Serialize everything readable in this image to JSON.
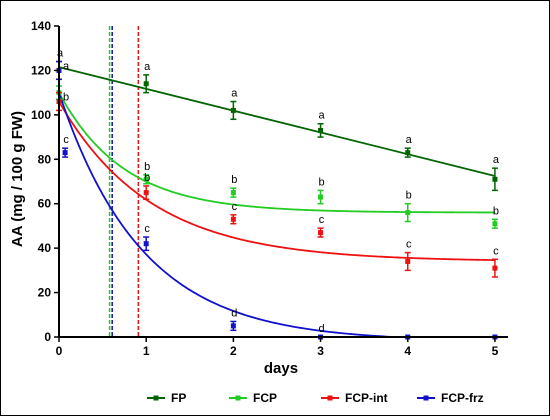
{
  "chart_data": {
    "type": "scatter",
    "title": "",
    "xlabel": "days",
    "ylabel": "AA (mg / 100 g FW)",
    "xlim": [
      0,
      5.15
    ],
    "ylim": [
      0,
      140
    ],
    "xticks": [
      "0",
      "1",
      "2",
      "3",
      "4",
      "5"
    ],
    "yticks": [
      "0",
      "20",
      "40",
      "60",
      "80",
      "100",
      "120",
      "140"
    ],
    "grid": false,
    "legend_position": "bottom",
    "series": [
      {
        "name": "FP",
        "color": "#006400",
        "x": [
          0,
          1,
          2,
          3,
          4,
          5
        ],
        "y": [
          120,
          114,
          102,
          93,
          83,
          71
        ],
        "err": [
          4,
          4,
          4,
          3,
          2,
          5
        ],
        "letters": [
          "a",
          "a",
          "a",
          "a",
          "a",
          "a"
        ],
        "fit": {
          "kind": "linear",
          "start": 121.5,
          "end": 72.5
        }
      },
      {
        "name": "FCP",
        "color": "#22cc22",
        "x": [
          0,
          1,
          2,
          3,
          4,
          5
        ],
        "y": [
          110,
          71,
          65,
          63,
          56,
          51
        ],
        "err": [
          3,
          2,
          2,
          3,
          4,
          2
        ],
        "letters": [
          "",
          "b",
          "b",
          "b",
          "b",
          "b"
        ],
        "fit": {
          "kind": "exp",
          "y0": 110,
          "plateau": 56,
          "k": 1.35
        }
      },
      {
        "name": "FCP-int",
        "color": "#ee1111",
        "x": [
          0,
          1,
          2,
          3,
          4,
          5
        ],
        "y": [
          106,
          65,
          53,
          47,
          34,
          31
        ],
        "err": [
          4,
          3,
          2,
          2,
          4,
          4
        ],
        "letters": [
          "",
          "b",
          "c",
          "c",
          "c",
          "c"
        ],
        "fit": {
          "kind": "exp",
          "y0": 106,
          "plateau": 34,
          "k": 0.95
        }
      },
      {
        "name": "FCP-frz",
        "color": "#1111cc",
        "x": [
          0,
          0.07,
          1,
          2,
          3,
          4,
          5
        ],
        "y": [
          120,
          83,
          42,
          5,
          0,
          0,
          0
        ],
        "err": [
          4,
          2,
          3,
          2,
          0,
          0,
          0
        ],
        "letters": [
          "",
          "c",
          "c",
          "d",
          "d",
          "",
          ""
        ],
        "fit": {
          "kind": "exp",
          "y0": 110,
          "plateau": -2,
          "k": 1.05
        }
      }
    ],
    "extra_letters": [
      {
        "x": 0,
        "y": 120,
        "text": "a"
      },
      {
        "x": 0,
        "y": 106,
        "text": "b"
      }
    ],
    "reference_lines": [
      {
        "x": 0.58,
        "color": "#22cc22"
      },
      {
        "x": 0.61,
        "color": "#1111cc"
      },
      {
        "x": 0.91,
        "color": "#ee1111"
      }
    ]
  }
}
